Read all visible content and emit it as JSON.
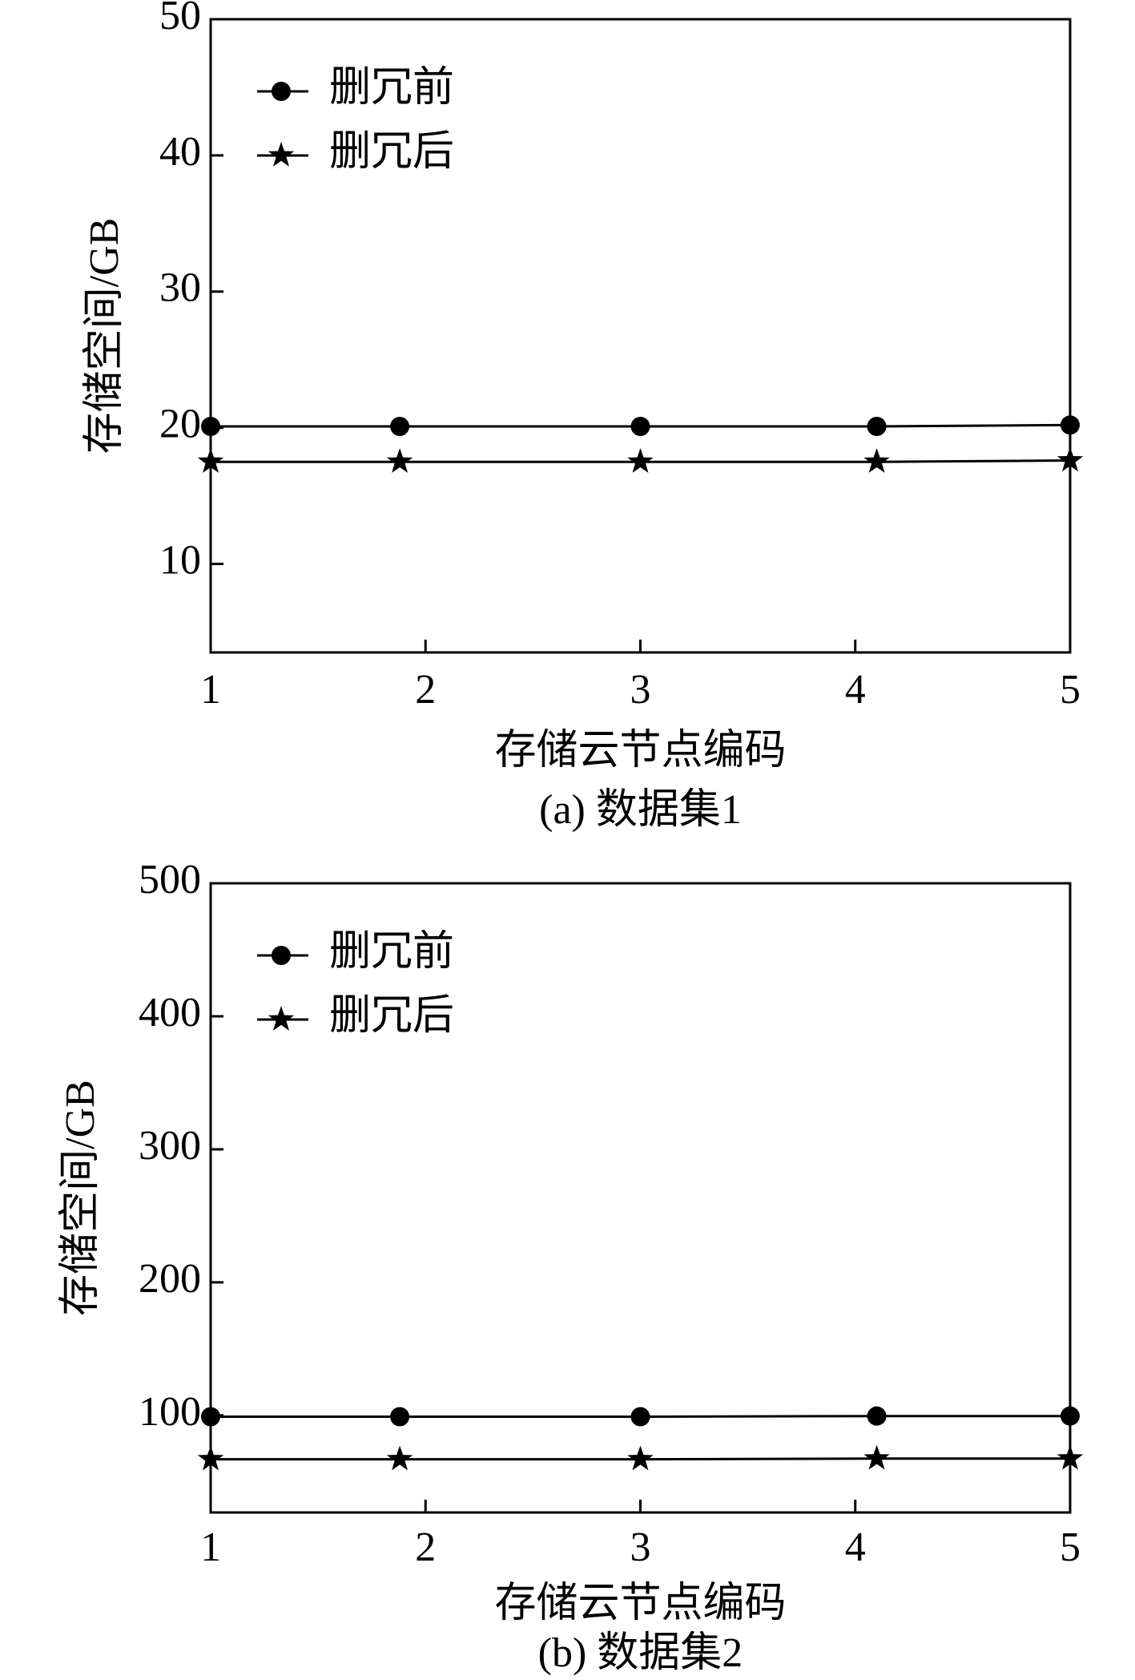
{
  "chart_data": [
    {
      "type": "line",
      "title": "(a) 数据集1",
      "x_label": "存储云节点编码",
      "y_label": "存储空间/GB",
      "x": [
        1,
        1.88,
        3,
        4.1,
        5
      ],
      "xlim": [
        1,
        5
      ],
      "xticks": [
        1,
        2,
        3,
        4,
        5
      ],
      "ylim": [
        3.5,
        50
      ],
      "yticks": [
        10,
        20,
        30,
        40,
        50
      ],
      "legend": "upper left",
      "series": [
        {
          "name": "删冗前",
          "color": "#000000",
          "marker": "circle",
          "values": [
            20.1,
            20.1,
            20.1,
            20.1,
            20.2
          ]
        },
        {
          "name": "删冗后",
          "color": "#000000",
          "marker": "star",
          "values": [
            17.5,
            17.5,
            17.5,
            17.5,
            17.6
          ]
        }
      ]
    },
    {
      "type": "line",
      "title": "(b) 数据集2",
      "x_label": "存储云节点编码",
      "y_label": "存储空间/GB",
      "x": [
        1,
        1.88,
        3,
        4.1,
        5
      ],
      "xlim": [
        1,
        5
      ],
      "xticks": [
        1,
        2,
        3,
        4,
        5
      ],
      "ylim": [
        27,
        500
      ],
      "yticks": [
        100,
        200,
        300,
        400,
        500
      ],
      "legend": "upper left",
      "series": [
        {
          "name": "删冗前",
          "color": "#000000",
          "marker": "circle",
          "values": [
            99,
            99,
            99,
            99.5,
            99.5
          ]
        },
        {
          "name": "删冗后",
          "color": "#000000",
          "marker": "star",
          "values": [
            67,
            67,
            67,
            67.5,
            67.5
          ]
        }
      ]
    }
  ]
}
